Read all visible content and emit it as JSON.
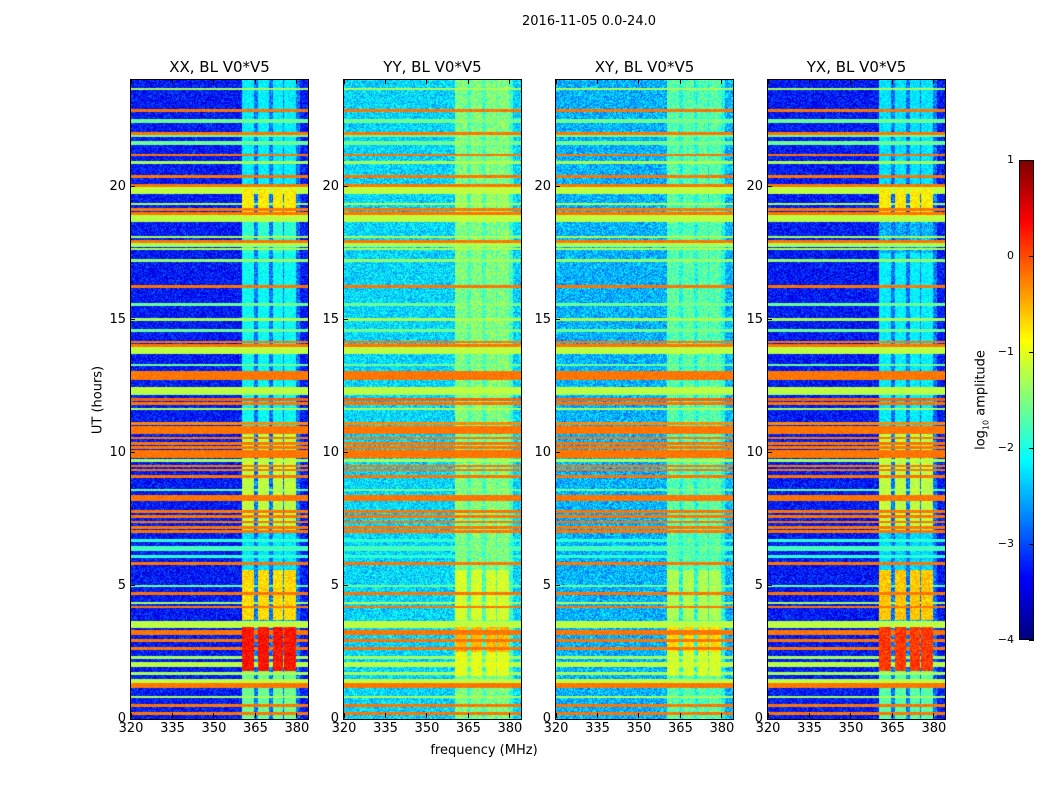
{
  "chart_data": {
    "type": "heatmap",
    "title": "2016-11-05 0.0-24.0",
    "xlabel": "frequency (MHz)",
    "ylabel": "UT (hours)",
    "xlim": [
      320,
      384
    ],
    "ylim": [
      0,
      24
    ],
    "xticks": [
      320,
      335,
      350,
      365,
      380
    ],
    "yticks": [
      0,
      5,
      10,
      15,
      20
    ],
    "colorbar": {
      "label_main": "log",
      "label_sub": "10",
      "label_rest": " amplitude",
      "range": [
        -4,
        1
      ],
      "ticks": [
        1,
        0,
        -1,
        -2,
        -3,
        -4
      ],
      "colormap": "jet"
    },
    "rfi_freq_columns_mhz": [
      [
        360.3,
        364.6
      ],
      [
        365.8,
        369.8
      ],
      [
        371.2,
        374.8
      ],
      [
        375.5,
        379.5
      ]
    ],
    "rfi_bands_hours": [
      [
        23.66,
        0.03,
        -1.3
      ],
      [
        22.85,
        0.03,
        -0.2
      ],
      [
        22.5,
        0.03,
        -1.6
      ],
      [
        22.45,
        0.03,
        -1.6
      ],
      [
        22.0,
        0.04,
        -0.2
      ],
      [
        21.9,
        0.03,
        -1.6
      ],
      [
        21.65,
        0.03,
        -1.6
      ],
      [
        21.6,
        0.03,
        -1.6
      ],
      [
        21.19,
        0.03,
        -0.2
      ],
      [
        20.9,
        0.03,
        -1.3
      ],
      [
        20.37,
        0.03,
        -0.2
      ],
      [
        20.03,
        0.04,
        -0.2
      ],
      [
        19.85,
        0.12,
        -1.2
      ],
      [
        19.35,
        0.03,
        -1.3
      ],
      [
        19.14,
        0.03,
        -0.2
      ],
      [
        18.99,
        0.03,
        -0.2
      ],
      [
        18.81,
        0.12,
        -1.2
      ],
      [
        18.1,
        0.03,
        -1.3
      ],
      [
        17.93,
        0.03,
        -0.2
      ],
      [
        17.85,
        0.03,
        -1.3
      ],
      [
        17.78,
        0.03,
        -1.3
      ],
      [
        17.65,
        0.03,
        -1.3
      ],
      [
        17.22,
        0.03,
        -1.4
      ],
      [
        16.26,
        0.04,
        -0.2
      ],
      [
        15.56,
        0.03,
        -1.6
      ],
      [
        15.0,
        0.03,
        -1.3
      ],
      [
        14.6,
        0.03,
        -1.6
      ],
      [
        14.16,
        0.03,
        -0.2
      ],
      [
        14.03,
        0.03,
        -0.2
      ],
      [
        13.85,
        0.14,
        -1.2
      ],
      [
        13.3,
        0.03,
        -1.6
      ],
      [
        12.9,
        0.14,
        -0.2
      ],
      [
        12.35,
        0.1,
        -1.2
      ],
      [
        12.2,
        0.03,
        -1.3
      ],
      [
        12.0,
        0.03,
        -0.1
      ],
      [
        11.86,
        0.04,
        -0.2
      ],
      [
        11.65,
        0.03,
        -1.3
      ],
      [
        11.1,
        0.04,
        -0.3
      ],
      [
        10.87,
        0.12,
        -0.2
      ],
      [
        10.75,
        0.03,
        -0.2
      ],
      [
        10.55,
        0.03,
        -0.2
      ],
      [
        10.35,
        0.03,
        -0.2
      ],
      [
        10.2,
        0.03,
        -0.2
      ],
      [
        10.05,
        0.04,
        -0.2
      ],
      [
        9.95,
        0.03,
        -0.2
      ],
      [
        9.85,
        0.03,
        -0.2
      ],
      [
        9.7,
        0.03,
        -1.3
      ],
      [
        9.5,
        0.03,
        -0.2
      ],
      [
        9.35,
        0.03,
        -0.2
      ],
      [
        9.1,
        0.03,
        -0.2
      ],
      [
        8.6,
        0.03,
        -1.6
      ],
      [
        8.35,
        0.04,
        -0.2
      ],
      [
        8.25,
        0.03,
        -0.2
      ],
      [
        7.8,
        0.03,
        -0.2
      ],
      [
        7.6,
        0.04,
        -0.2
      ],
      [
        7.4,
        0.03,
        -0.2
      ],
      [
        7.2,
        0.04,
        -0.2
      ],
      [
        7.05,
        0.03,
        -0.2
      ],
      [
        6.7,
        0.05,
        -1.9
      ],
      [
        6.4,
        0.08,
        -1.8
      ],
      [
        6.1,
        0.05,
        -1.9
      ],
      [
        5.85,
        0.03,
        -0.2
      ],
      [
        5.0,
        0.02,
        -1.6
      ],
      [
        4.72,
        0.03,
        -0.2
      ],
      [
        4.35,
        0.03,
        -1.3
      ],
      [
        4.2,
        0.03,
        -0.2
      ],
      [
        3.55,
        0.13,
        -1.2
      ],
      [
        3.3,
        0.03,
        -0.2
      ],
      [
        3.2,
        0.03,
        -0.2
      ],
      [
        2.95,
        0.03,
        -0.2
      ],
      [
        2.65,
        0.03,
        -0.2
      ],
      [
        2.3,
        0.03,
        -1.3
      ],
      [
        2.05,
        0.08,
        -1.2
      ],
      [
        1.72,
        0.03,
        -1.3
      ],
      [
        1.42,
        0.08,
        -1.2
      ],
      [
        1.25,
        0.08,
        -0.2
      ],
      [
        0.83,
        0.03,
        -1.3
      ],
      [
        0.5,
        0.04,
        -0.2
      ],
      [
        0.2,
        0.03,
        -0.2
      ]
    ],
    "panels": [
      {
        "title": "XX, BL V0*V5",
        "base_level": -3.3,
        "rfi_blocks": [
          [
            0,
            1.8,
            -1.6
          ],
          [
            1.8,
            3.45,
            0.3
          ],
          [
            3.7,
            5.6,
            -0.7
          ],
          [
            7.0,
            11.0,
            -1.2
          ],
          [
            12.0,
            17.5,
            -2.1
          ],
          [
            17.5,
            18.9,
            -1.9
          ],
          [
            18.9,
            19.9,
            -0.8
          ],
          [
            19.9,
            24,
            -2.2
          ],
          [
            5.6,
            7.0,
            -2.3
          ],
          [
            11.0,
            12.0,
            -2.1
          ]
        ]
      },
      {
        "title": "YY, BL V0*V5",
        "base_level": -2.3,
        "rfi_blocks": [
          [
            1.6,
            2.5,
            -1.0
          ],
          [
            2.5,
            3.45,
            -0.5
          ],
          [
            3.7,
            5.6,
            -1.1
          ],
          [
            7.0,
            8.5,
            -1.7
          ],
          [
            18.9,
            19.9,
            -1.5
          ]
        ]
      },
      {
        "title": "XY, BL V0*V5",
        "base_level": -2.5,
        "rfi_blocks": [
          [
            1.6,
            2.5,
            -1.1
          ],
          [
            2.5,
            3.45,
            -0.7
          ],
          [
            3.7,
            5.6,
            -1.3
          ],
          [
            7.0,
            8.5,
            -1.9
          ]
        ]
      },
      {
        "title": "YX, BL V0*V5",
        "base_level": -3.3,
        "rfi_blocks": [
          [
            0,
            1.8,
            -1.7
          ],
          [
            1.8,
            3.45,
            0.1
          ],
          [
            3.7,
            5.6,
            -0.6
          ],
          [
            7.0,
            11.0,
            -1.2
          ],
          [
            12.0,
            17.5,
            -2.2
          ],
          [
            18.9,
            19.9,
            -0.8
          ],
          [
            19.9,
            24,
            -2.3
          ],
          [
            5.6,
            7.0,
            -2.4
          ],
          [
            11.0,
            12.0,
            -2.2
          ]
        ]
      }
    ]
  }
}
